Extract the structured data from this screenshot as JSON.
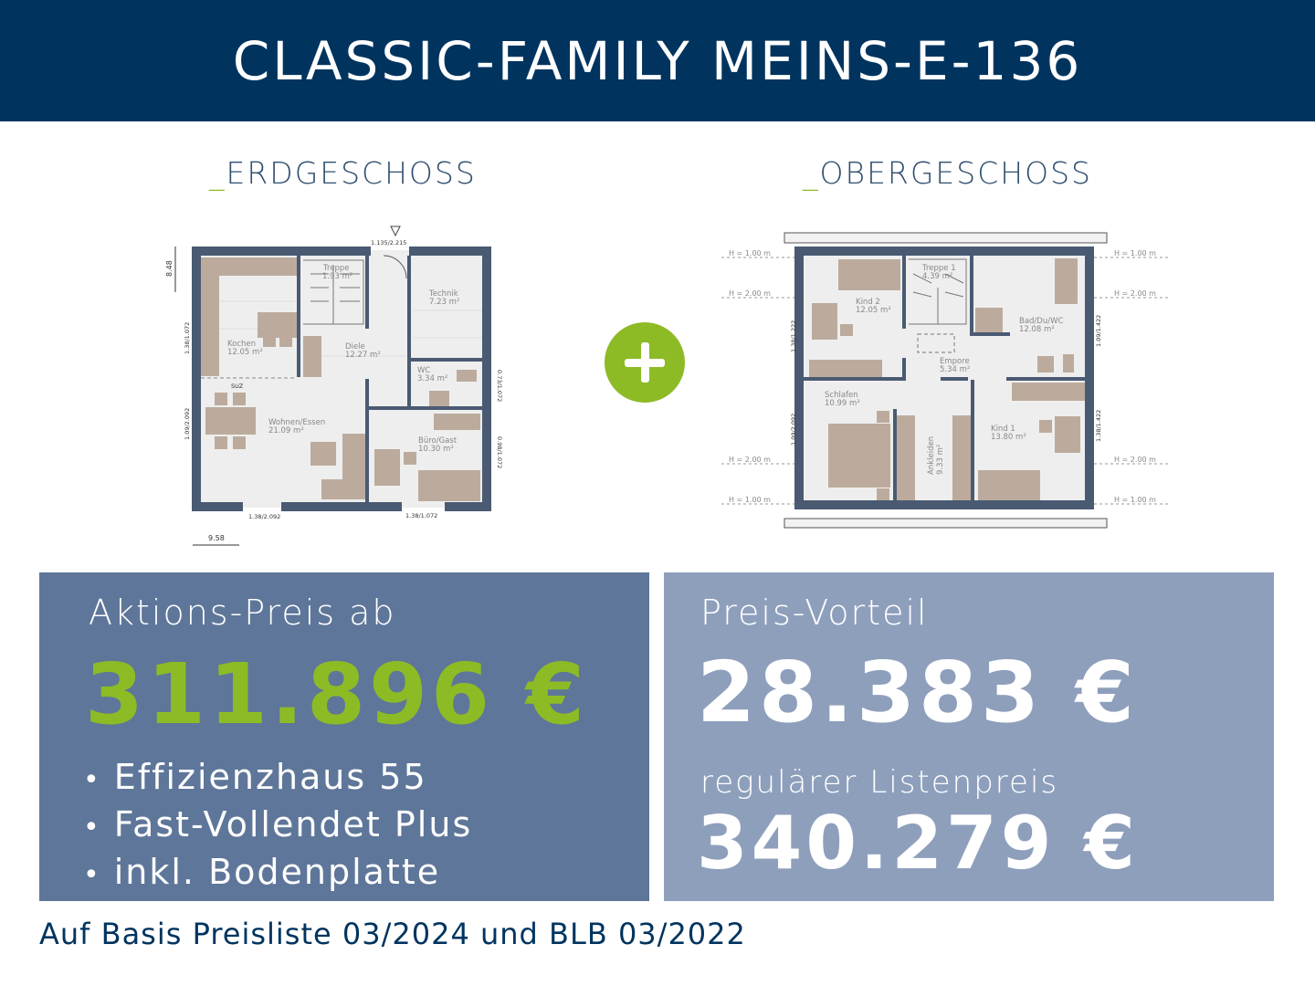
{
  "header": {
    "title": "CLASSIC-FAMILY MEINS-E-136"
  },
  "floors": {
    "ground": {
      "title_prefix": "_",
      "title": "ERDGESCHOSS",
      "rooms": [
        {
          "name": "Treppe",
          "area": "1.93 m²"
        },
        {
          "name": "Technik",
          "area": "7.23 m²"
        },
        {
          "name": "Kochen",
          "area": "12.05 m²"
        },
        {
          "name": "Diele",
          "area": "12.27 m²"
        },
        {
          "name": "WC",
          "area": "3.34 m²"
        },
        {
          "name": "Wohnen/Essen",
          "area": "21.09 m²"
        },
        {
          "name": "Büro/Gast",
          "area": "10.30 m²"
        }
      ],
      "dimensions": {
        "entrance": "1.135/2.215",
        "depth": "8.48",
        "width": "9.58",
        "kitchen_window": "1.38/1.072",
        "living_window": "1.09/2.092",
        "wc_window": "0.73/1.072",
        "office_window_right": "0.98/1.072",
        "terrace_door": "1.38/2.092",
        "office_window_bottom": "1.38/1.072",
        "suz": "SUZ"
      }
    },
    "upper": {
      "title_prefix": "_",
      "title": "OBERGESCHOSS",
      "rooms": [
        {
          "name": "Kind 2",
          "area": "12.05 m²"
        },
        {
          "name": "Treppe 1",
          "area": "4.39 m²"
        },
        {
          "name": "Bad/Du/WC",
          "area": "12.08 m²"
        },
        {
          "name": "Empore",
          "area": "5.34 m²"
        },
        {
          "name": "Schlafen",
          "area": "10.99 m²"
        },
        {
          "name": "Ankleiden",
          "area": "9.33 m²"
        },
        {
          "name": "Kind 1",
          "area": "13.80 m²"
        }
      ],
      "heights": {
        "h1": "H = 1.00 m",
        "h2": "H = 2.00 m"
      },
      "dimensions": {
        "kind2_window": "1.38/1.222",
        "schlafen_window": "1.09/2.092",
        "bad_window": "1.09/1.422",
        "kind1_window": "1.38/1.422"
      }
    }
  },
  "offer": {
    "label": "Aktions-Preis ab",
    "price": "311.896 €",
    "features": [
      "Effizienzhaus 55",
      "Fast-Vollendet Plus",
      "inkl. Bodenplatte"
    ]
  },
  "advantage": {
    "label": "Preis-Vorteil",
    "amount": "28.383 €",
    "list_label": "regulärer Listenpreis",
    "list_price": "340.279 €"
  },
  "footer": {
    "note": "Auf Basis Preisliste 03/2024 und BLB 03/2022"
  },
  "colors": {
    "navy": "#00345f",
    "green": "#8dbb25",
    "box_dark": "#5e7699",
    "box_light": "#8e9fbc",
    "wall": "#4a5a72",
    "furniture": "#bcab9c"
  }
}
